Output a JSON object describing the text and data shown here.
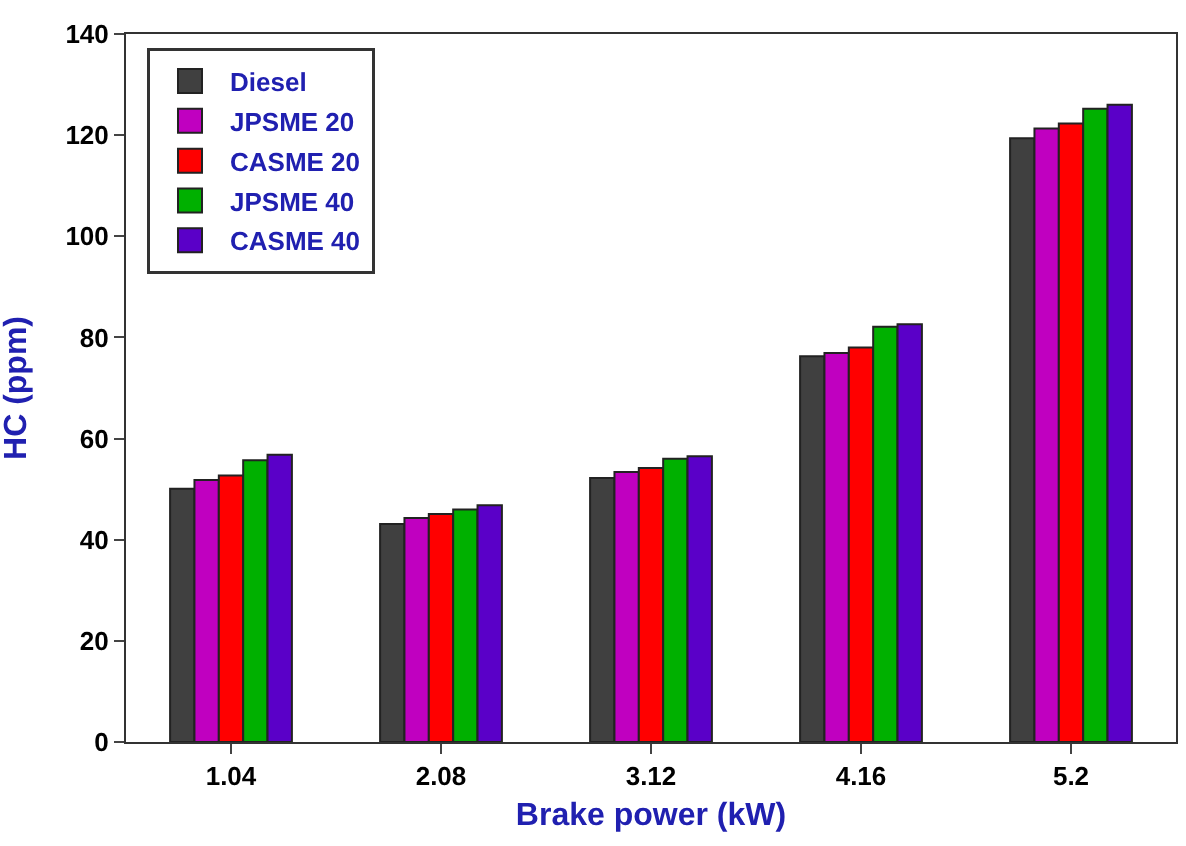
{
  "chart_data": {
    "type": "bar",
    "xlabel": "Brake power (kW)",
    "ylabel": "HC (ppm)",
    "categories": [
      "1.04",
      "2.08",
      "3.12",
      "4.16",
      "5.2"
    ],
    "series": [
      {
        "name": "Diesel",
        "color": "#404040",
        "values": [
          50.1,
          43.1,
          52.2,
          76.3,
          119.4
        ]
      },
      {
        "name": "JPSME 20",
        "color": "#c000c0",
        "values": [
          51.8,
          44.3,
          53.4,
          76.9,
          121.3
        ]
      },
      {
        "name": "CASME 20",
        "color": "#ff0000",
        "values": [
          52.7,
          45.1,
          54.2,
          78.0,
          122.3
        ]
      },
      {
        "name": "JPSME 40",
        "color": "#00b000",
        "values": [
          55.7,
          46.0,
          56.0,
          82.1,
          125.2
        ]
      },
      {
        "name": "CASME 40",
        "color": "#5a00c8",
        "values": [
          56.8,
          46.8,
          56.5,
          82.6,
          126.0
        ]
      }
    ],
    "ylim": [
      0,
      140
    ],
    "yticks": [
      0,
      20,
      40,
      60,
      80,
      100,
      120,
      140
    ],
    "legend": "top left"
  }
}
